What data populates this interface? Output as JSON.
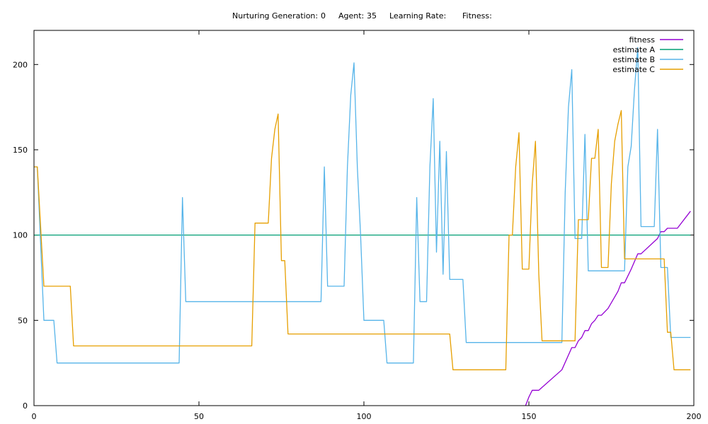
{
  "header": {
    "generation_label": "Nurturing Generation:",
    "generation_value": "0",
    "agent_label": "Agent:",
    "agent_value": "35",
    "learning_rate_label": "Learning Rate:",
    "learning_rate_value": "",
    "fitness_label": "Fitness:",
    "fitness_value": ""
  },
  "chart_data": {
    "type": "line",
    "xlim": [
      0,
      200
    ],
    "ylim": [
      0,
      220
    ],
    "x_ticks": [
      0,
      50,
      100,
      150,
      200
    ],
    "y_ticks": [
      0,
      50,
      100,
      150,
      200
    ],
    "grid": false,
    "legend_position": "top-right",
    "series": [
      {
        "name": "fitness",
        "color": "#9400d3",
        "points": [
          [
            149,
            0
          ],
          [
            150,
            5
          ],
          [
            151,
            9
          ],
          [
            153,
            9
          ],
          [
            160,
            21
          ],
          [
            163,
            34
          ],
          [
            164,
            34
          ],
          [
            165,
            38
          ],
          [
            166,
            40
          ],
          [
            167,
            44
          ],
          [
            168,
            44
          ],
          [
            169,
            48
          ],
          [
            170,
            50
          ],
          [
            171,
            53
          ],
          [
            172,
            53
          ],
          [
            174,
            57
          ],
          [
            177,
            67
          ],
          [
            178,
            72
          ],
          [
            179,
            72
          ],
          [
            181,
            80
          ],
          [
            183,
            89
          ],
          [
            184,
            89
          ],
          [
            189,
            98
          ],
          [
            190,
            102
          ],
          [
            191,
            102
          ],
          [
            192,
            104
          ],
          [
            195,
            104
          ],
          [
            199,
            114
          ]
        ]
      },
      {
        "name": "estimate A",
        "color": "#009e73",
        "points": [
          [
            0,
            100
          ],
          [
            199,
            100
          ]
        ]
      },
      {
        "name": "estimate B",
        "color": "#56b4e9",
        "points": [
          [
            0,
            140
          ],
          [
            1,
            140
          ],
          [
            3,
            50
          ],
          [
            6,
            50
          ],
          [
            7,
            25
          ],
          [
            44,
            25
          ],
          [
            45,
            122
          ],
          [
            46,
            61
          ],
          [
            87,
            61
          ],
          [
            88,
            140
          ],
          [
            89,
            70
          ],
          [
            94,
            70
          ],
          [
            95,
            140
          ],
          [
            96,
            182
          ],
          [
            97,
            201
          ],
          [
            98,
            140
          ],
          [
            99,
            100
          ],
          [
            100,
            50
          ],
          [
            106,
            50
          ],
          [
            107,
            25
          ],
          [
            115,
            25
          ],
          [
            116,
            122
          ],
          [
            117,
            61
          ],
          [
            119,
            61
          ],
          [
            120,
            140
          ],
          [
            121,
            180
          ],
          [
            122,
            90
          ],
          [
            123,
            155
          ],
          [
            124,
            77
          ],
          [
            125,
            149
          ],
          [
            126,
            74
          ],
          [
            130,
            74
          ],
          [
            131,
            37
          ],
          [
            160,
            37
          ],
          [
            161,
            125
          ],
          [
            162,
            175
          ],
          [
            163,
            197
          ],
          [
            164,
            98
          ],
          [
            166,
            98
          ],
          [
            167,
            159
          ],
          [
            168,
            79
          ],
          [
            178,
            79
          ],
          [
            179,
            79
          ],
          [
            180,
            140
          ],
          [
            181,
            152
          ],
          [
            182,
            185
          ],
          [
            183,
            210
          ],
          [
            184,
            105
          ],
          [
            188,
            105
          ],
          [
            189,
            162
          ],
          [
            190,
            81
          ],
          [
            192,
            81
          ],
          [
            193,
            40
          ],
          [
            199,
            40
          ]
        ]
      },
      {
        "name": "estimate C",
        "color": "#e69f00",
        "points": [
          [
            0,
            140
          ],
          [
            1,
            140
          ],
          [
            3,
            70
          ],
          [
            11,
            70
          ],
          [
            12,
            35
          ],
          [
            66,
            35
          ],
          [
            67,
            107
          ],
          [
            71,
            107
          ],
          [
            72,
            145
          ],
          [
            73,
            162
          ],
          [
            74,
            171
          ],
          [
            75,
            85
          ],
          [
            76,
            85
          ],
          [
            77,
            42
          ],
          [
            126,
            42
          ],
          [
            127,
            21
          ],
          [
            143,
            21
          ],
          [
            144,
            100
          ],
          [
            145,
            100
          ],
          [
            146,
            140
          ],
          [
            147,
            160
          ],
          [
            148,
            80
          ],
          [
            150,
            80
          ],
          [
            151,
            130
          ],
          [
            152,
            155
          ],
          [
            153,
            77
          ],
          [
            154,
            38
          ],
          [
            164,
            38
          ],
          [
            165,
            109
          ],
          [
            168,
            109
          ],
          [
            169,
            145
          ],
          [
            170,
            145
          ],
          [
            171,
            162
          ],
          [
            172,
            81
          ],
          [
            174,
            81
          ],
          [
            175,
            130
          ],
          [
            176,
            155
          ],
          [
            177,
            165
          ],
          [
            178,
            173
          ],
          [
            179,
            86
          ],
          [
            191,
            86
          ],
          [
            192,
            43
          ],
          [
            193,
            43
          ],
          [
            194,
            21
          ],
          [
            199,
            21
          ]
        ]
      }
    ]
  }
}
